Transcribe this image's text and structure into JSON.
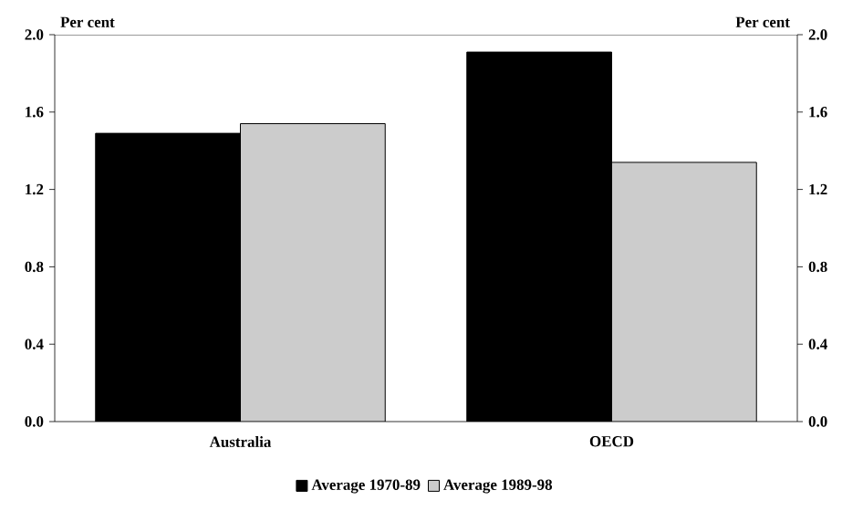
{
  "chart_data": {
    "type": "bar",
    "categories": [
      "Australia",
      "OECD"
    ],
    "series": [
      {
        "name": "Average 1970-89",
        "color": "#000000",
        "values": [
          1.49,
          1.91
        ]
      },
      {
        "name": "Average 1989-98",
        "color": "#cccccc",
        "values": [
          1.54,
          1.34
        ]
      }
    ],
    "ylabel": "Per cent",
    "y2label": "Per cent",
    "ylim": [
      0,
      2.0
    ],
    "yticks": [
      {
        "value": 0,
        "label": "0.0"
      },
      {
        "value": 0.4,
        "label": "0.4"
      },
      {
        "value": 0.8,
        "label": "0.8"
      },
      {
        "value": 1.2,
        "label": "1.2"
      },
      {
        "value": 1.6,
        "label": "1.6"
      },
      {
        "value": 2.0,
        "label": "2.0"
      }
    ],
    "y2lim": [
      0,
      2.0
    ],
    "y2ticks": [
      {
        "value": 0,
        "label": "0.0"
      },
      {
        "value": 0.4,
        "label": "0.4"
      },
      {
        "value": 0.8,
        "label": "0.8"
      },
      {
        "value": 1.2,
        "label": "1.2"
      },
      {
        "value": 1.6,
        "label": "1.6"
      },
      {
        "value": 2.0,
        "label": "2.0"
      }
    ],
    "legend": "bottom",
    "grid": false
  }
}
